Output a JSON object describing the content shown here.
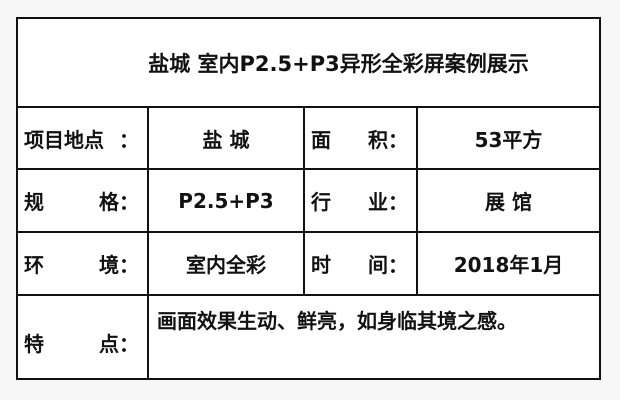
{
  "title": "盐城  室内P2.5+P3异形全彩屏案例展示",
  "rows": [
    {
      "label1": [
        "项目地点",
        "："
      ],
      "value1": "盐 城",
      "label2": [
        "面",
        "积："
      ],
      "value2": "53平方"
    },
    {
      "label1": [
        "规",
        "格："
      ],
      "value1": "P2.5+P3",
      "label2": [
        "行",
        "业："
      ],
      "value2": "展 馆"
    },
    {
      "label1": [
        "环",
        "境："
      ],
      "value1": "室内全彩",
      "label2": [
        "时",
        "间："
      ],
      "value2": "2018年1月"
    }
  ],
  "feature": {
    "label": [
      "特",
      "点："
    ],
    "value": "画面效果生动、鲜亮，如身临其境之感。"
  }
}
